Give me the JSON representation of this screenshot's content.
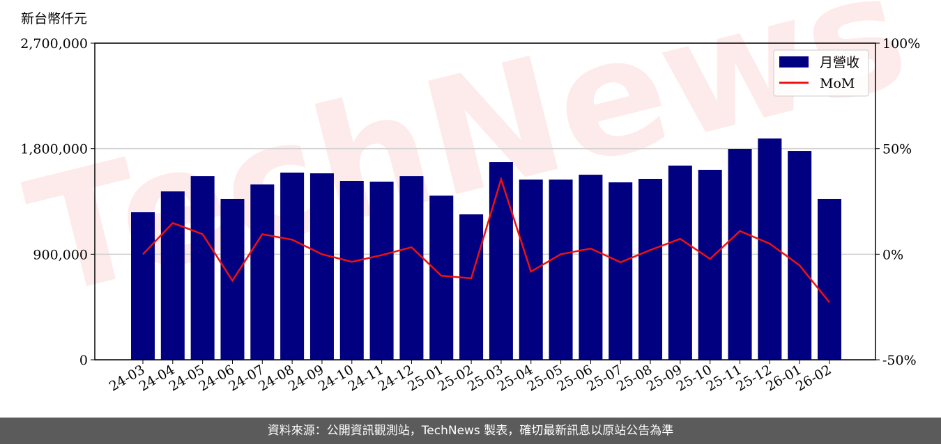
{
  "chart_data": {
    "type": "bar_line",
    "y_label": "新台幣仟元",
    "watermark": "TechNews",
    "categories": [
      "24-03",
      "24-04",
      "24-05",
      "24-06",
      "24-07",
      "24-08",
      "24-09",
      "24-10",
      "24-11",
      "24-12",
      "25-01",
      "25-02",
      "25-03",
      "25-04",
      "25-05",
      "25-06",
      "25-07",
      "25-08",
      "25-09",
      "25-10",
      "25-11",
      "25-12",
      "26-01",
      "26-02"
    ],
    "series": [
      {
        "name": "月營收",
        "color": "#000080",
        "type": "bar",
        "values": [
          1258000,
          1436000,
          1566000,
          1371000,
          1495000,
          1596000,
          1590000,
          1525000,
          1519000,
          1566000,
          1400000,
          1240000,
          1685000,
          1537000,
          1537000,
          1578000,
          1513000,
          1543000,
          1656000,
          1620000,
          1798000,
          1887000,
          1780000,
          1371000
        ]
      },
      {
        "name": "MoM",
        "color": "#ee1111",
        "type": "line",
        "axis": "y2",
        "values": [
          0,
          14.8,
          9.5,
          -12.5,
          9.5,
          6.9,
          0,
          -3.6,
          -0.4,
          3.3,
          -10.2,
          -11.4,
          35.5,
          -8.2,
          0,
          2.7,
          -3.8,
          2.0,
          7.3,
          -2.2,
          11.0,
          5.0,
          -5.3,
          -22.8
        ]
      }
    ],
    "ylim": [
      0,
      2700000
    ],
    "yticks": [
      {
        "value": 0,
        "label": "0"
      },
      {
        "value": 900000,
        "label": "900,000"
      },
      {
        "value": 1800000,
        "label": "1,800,000"
      },
      {
        "value": 2700000,
        "label": "2,700,000"
      }
    ],
    "y2lim": [
      -50,
      100
    ],
    "y2ticks": [
      {
        "value": -50,
        "label": "-50%"
      },
      {
        "value": 0,
        "label": "0%"
      },
      {
        "value": 50,
        "label": "50%"
      },
      {
        "value": 100,
        "label": "100%"
      }
    ],
    "grid": true,
    "legend": "upper right"
  },
  "footer": "資料來源：公開資訊觀測站，TechNews 製表，確切最新訊息以原站公告為準"
}
